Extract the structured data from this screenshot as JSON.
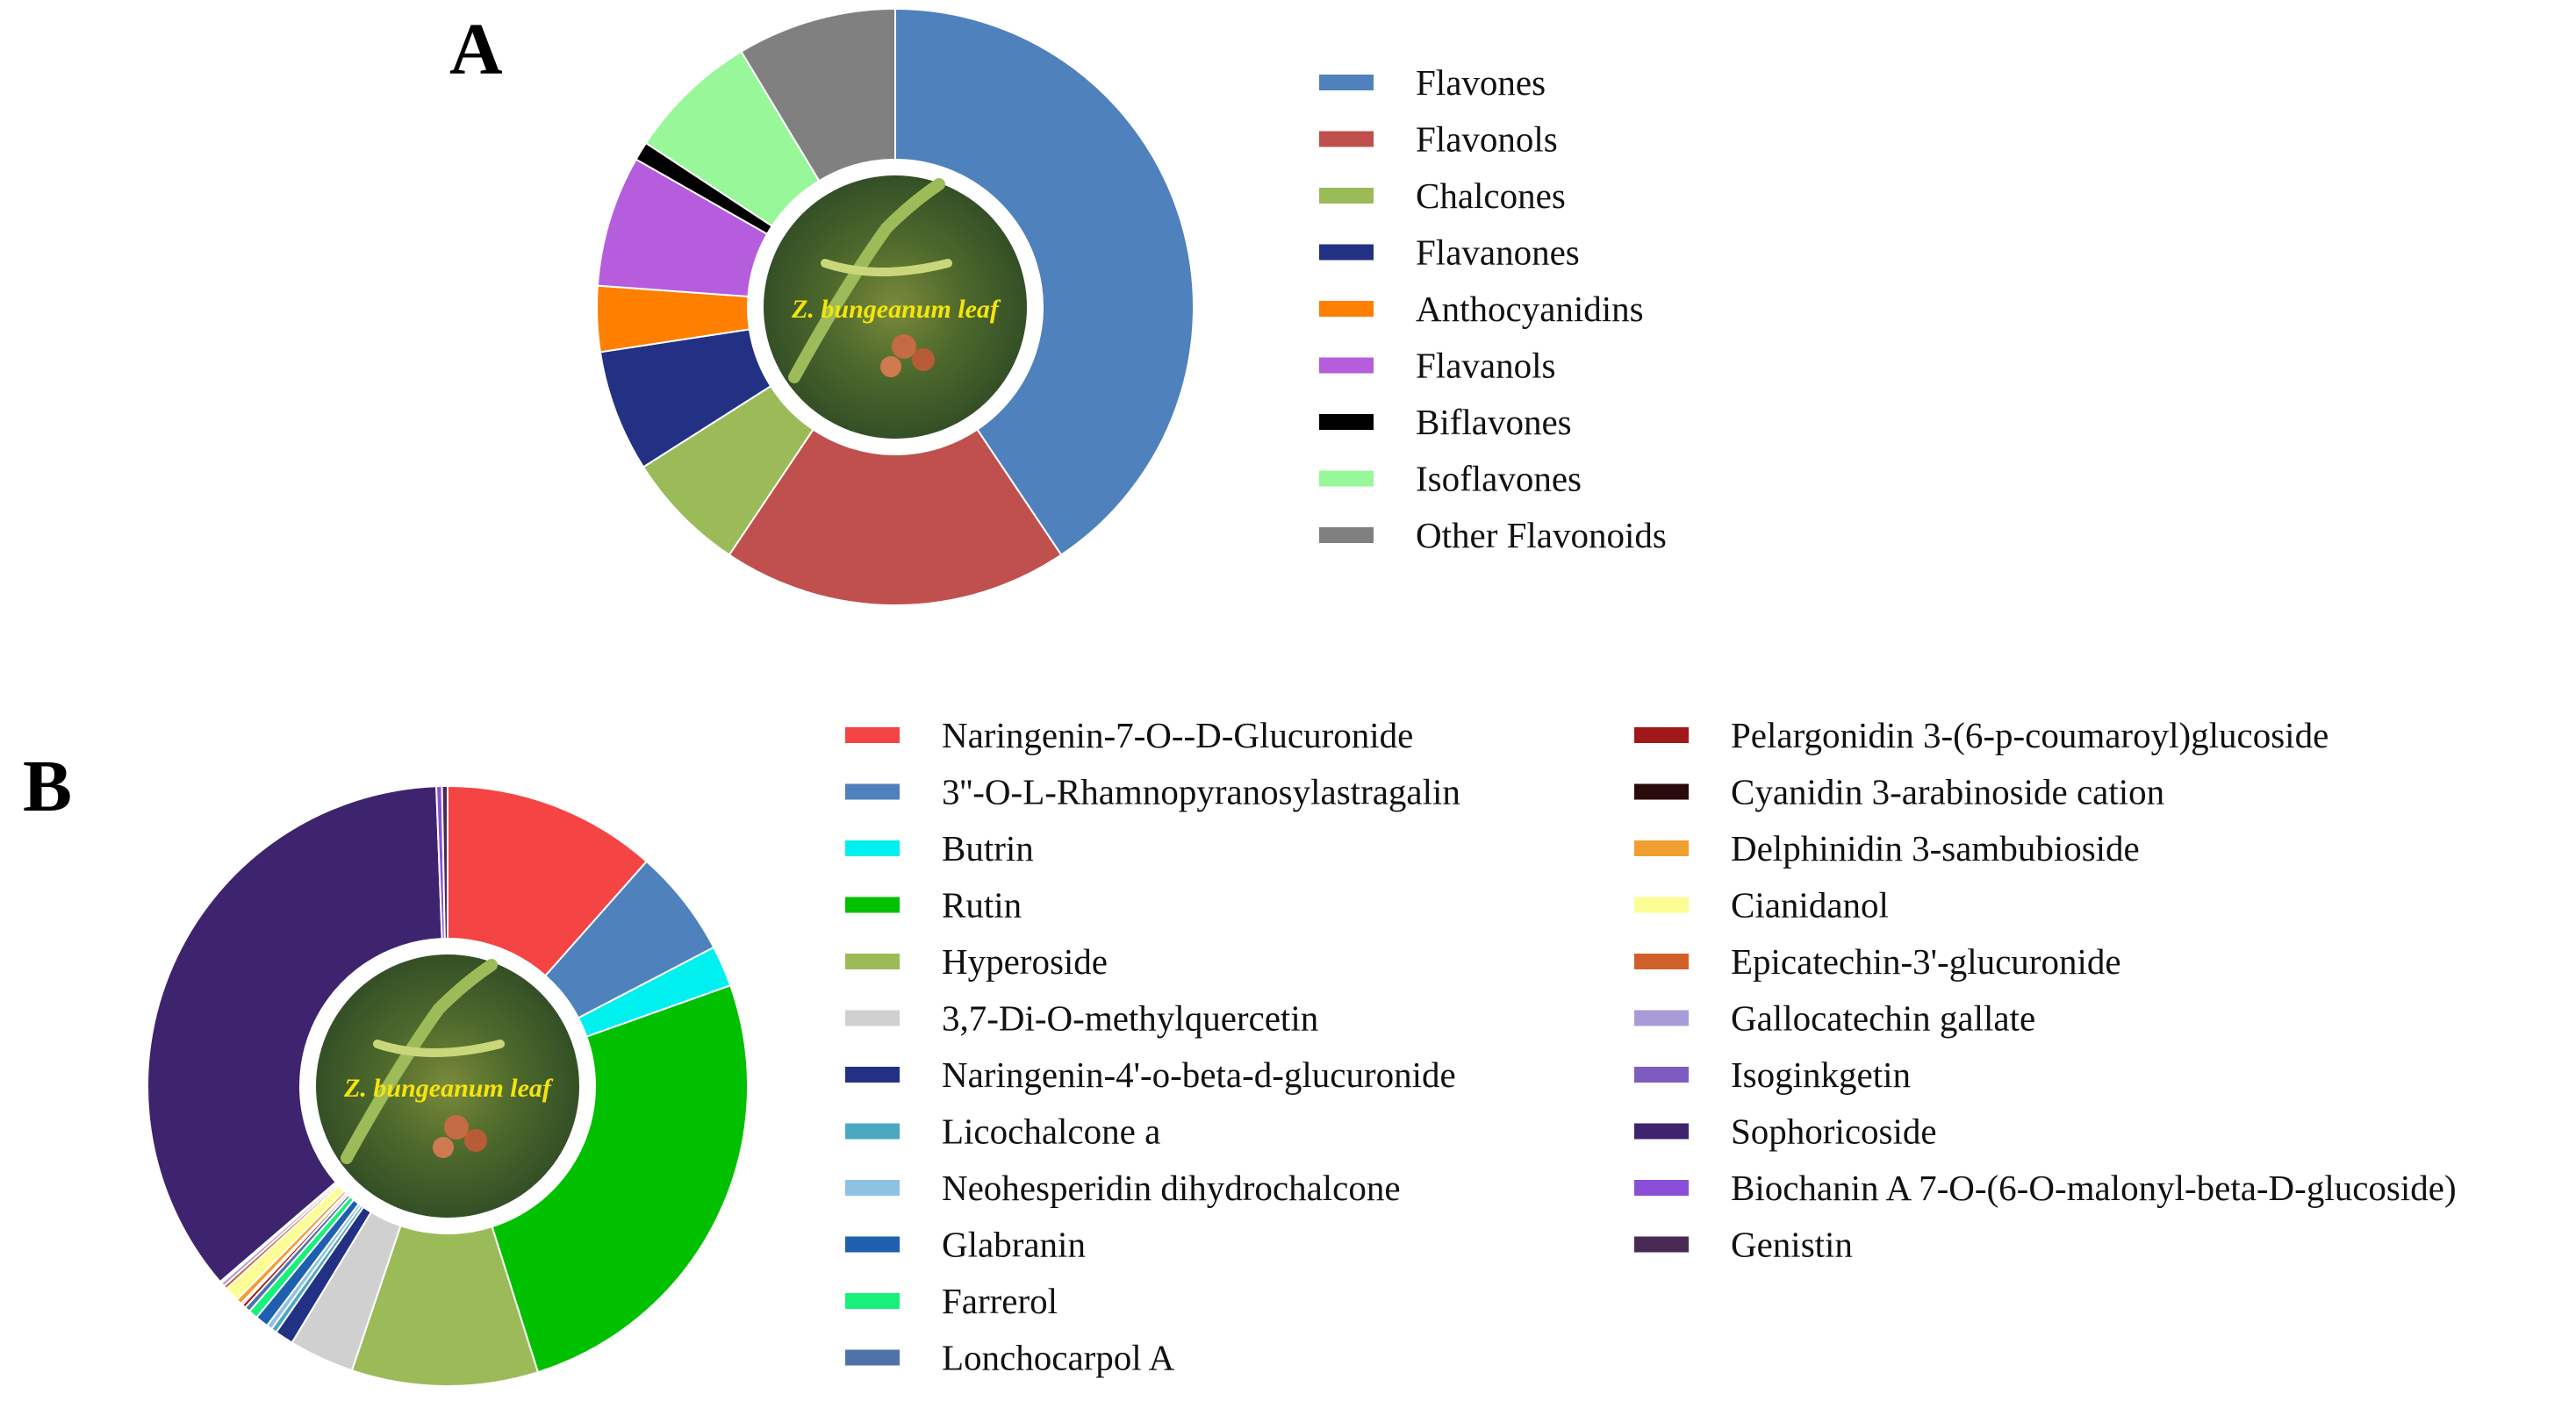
{
  "panel_labels": {
    "a": "A",
    "b": "B"
  },
  "center_photo_label": "Z. bungeanum leaf",
  "chart_data": [
    {
      "type": "pie",
      "variant": "donut",
      "panel": "A",
      "center_text": "Z. bungeanum leaf",
      "legend_position": "right",
      "slices": [
        {
          "label": "Flavones",
          "value": 40.0,
          "color": "#4f81bd"
        },
        {
          "label": "Flavonols",
          "value": 18.5,
          "color": "#c0504d"
        },
        {
          "label": "Chalcones",
          "value": 6.5,
          "color": "#9bbb59"
        },
        {
          "label": "Flavanones",
          "value": 6.5,
          "color": "#233184"
        },
        {
          "label": "Anthocyanidins",
          "value": 3.5,
          "color": "#ff7f00"
        },
        {
          "label": "Flavanols",
          "value": 7.0,
          "color": "#b55ddc"
        },
        {
          "label": "Biflavones",
          "value": 1.0,
          "color": "#000000"
        },
        {
          "label": "Isoflavones",
          "value": 7.0,
          "color": "#98f798"
        },
        {
          "label": "Other Flavonoids",
          "value": 8.5,
          "color": "#808080"
        }
      ]
    },
    {
      "type": "pie",
      "variant": "donut",
      "panel": "B",
      "center_text": "Z. bungeanum leaf",
      "legend_position": "right",
      "slices": [
        {
          "label": "Naringenin-7-O--D-Glucuronide",
          "value": 11.5,
          "color": "#f44444"
        },
        {
          "label": "3''-O-L-Rhamnopyranosylastragalin",
          "value": 5.8,
          "color": "#4f81bd"
        },
        {
          "label": "Butrin",
          "value": 2.2,
          "color": "#00f0f0"
        },
        {
          "label": "Rutin",
          "value": 25.5,
          "color": "#00c000"
        },
        {
          "label": "Hyperoside",
          "value": 10.0,
          "color": "#9bbb59"
        },
        {
          "label": "3,7-Di-O-methylquercetin",
          "value": 3.5,
          "color": "#d0d0d0"
        },
        {
          "label": "Naringenin-4'-o-beta-d-glucuronide",
          "value": 1.0,
          "color": "#233184"
        },
        {
          "label": "Licochalcone a",
          "value": 0.3,
          "color": "#4aa8c0"
        },
        {
          "label": "Neohesperidin dihydrochalcone",
          "value": 0.3,
          "color": "#8fc1e3"
        },
        {
          "label": "Glabranin",
          "value": 0.7,
          "color": "#1f5fb0"
        },
        {
          "label": "Farrerol",
          "value": 0.5,
          "color": "#19f07a"
        },
        {
          "label": "Lonchocarpol A",
          "value": 0.3,
          "color": "#4f73a8"
        },
        {
          "label": "Pelargonidin 3-(6-p-coumaroyl)glucoside",
          "value": 0.2,
          "color": "#a01818"
        },
        {
          "label": "Cyanidin 3-arabinoside cation",
          "value": 0.1,
          "color": "#2a0a0a"
        },
        {
          "label": "Delphinidin 3-sambubioside",
          "value": 0.3,
          "color": "#f0a030"
        },
        {
          "label": "Cianidanol",
          "value": 0.8,
          "color": "#fdfd96"
        },
        {
          "label": "Epicatechin-3'-glucuronide",
          "value": 0.2,
          "color": "#d0602a"
        },
        {
          "label": "Gallocatechin gallate",
          "value": 0.2,
          "color": "#a89cd8"
        },
        {
          "label": "Isoginkgetin",
          "value": 0.1,
          "color": "#7d5cc0"
        },
        {
          "label": "Sophoricoside",
          "value": 35.6,
          "color": "#3e246e"
        },
        {
          "label": "Biochanin A 7-O-(6-O-malonyl-beta-D-glucoside)",
          "value": 0.3,
          "color": "#8a4fd8"
        },
        {
          "label": "Genistin",
          "value": 0.3,
          "color": "#4a2a55"
        }
      ]
    }
  ]
}
